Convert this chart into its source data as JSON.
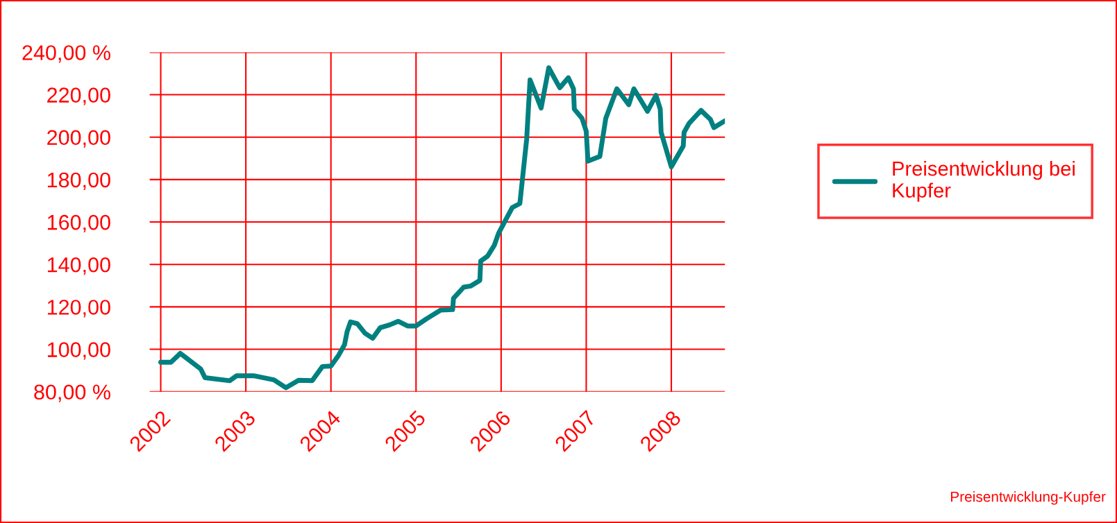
{
  "chart_data": {
    "type": "line",
    "xlim": [
      2001.87,
      2008.63
    ],
    "ylim": [
      80,
      240
    ],
    "xticks": [
      2002,
      2003,
      2004,
      2005,
      2006,
      2007,
      2008
    ],
    "yticks": [
      {
        "value": 80,
        "label": "80,00 %"
      },
      {
        "value": 100,
        "label": "100,00"
      },
      {
        "value": 120,
        "label": "120,00"
      },
      {
        "value": 140,
        "label": "140,00"
      },
      {
        "value": 160,
        "label": "160,00"
      },
      {
        "value": 180,
        "label": "180,00"
      },
      {
        "value": 200,
        "label": "200,00"
      },
      {
        "value": 220,
        "label": "220,00"
      },
      {
        "value": 240,
        "label": "240,00 %"
      }
    ],
    "grid": true,
    "legend": "right",
    "marker": "none",
    "line_style": "solid",
    "annotations": [
      "Preisentwicklung-Kupfer"
    ],
    "series": [
      {
        "name": "Preisentwicklung bei Kupfer",
        "color": "#008080",
        "x": [
          2002.0,
          2002.12,
          2002.23,
          2002.47,
          2002.52,
          2002.81,
          2002.89,
          2003.1,
          2003.33,
          2003.47,
          2003.62,
          2003.78,
          2003.9,
          2004.0,
          2004.09,
          2004.16,
          2004.19,
          2004.23,
          2004.31,
          2004.4,
          2004.49,
          2004.58,
          2004.69,
          2004.79,
          2004.9,
          2005.0,
          2005.12,
          2005.29,
          2005.43,
          2005.44,
          2005.56,
          2005.64,
          2005.75,
          2005.76,
          2005.84,
          2005.92,
          2005.97,
          2006.13,
          2006.22,
          2006.3,
          2006.34,
          2006.47,
          2006.56,
          2006.66,
          2006.69,
          2006.79,
          2006.85,
          2006.86,
          2006.95,
          2007.0,
          2007.02,
          2007.16,
          2007.23,
          2007.36,
          2007.5,
          2007.56,
          2007.72,
          2007.82,
          2007.87,
          2007.88,
          2008.0,
          2008.14,
          2008.15,
          2008.21,
          2008.35,
          2008.46,
          2008.5,
          2008.63
        ],
        "values": [
          93.9,
          93.9,
          98.1,
          90.7,
          86.6,
          85.2,
          87.5,
          87.5,
          85.6,
          81.9,
          85.4,
          85.2,
          91.9,
          92.1,
          97.2,
          102.2,
          108.3,
          112.9,
          112.1,
          107.6,
          105.2,
          110.2,
          111.5,
          113.2,
          111.0,
          111.0,
          114.3,
          118.5,
          118.7,
          124.0,
          129.3,
          129.8,
          132.5,
          141.6,
          143.9,
          149.0,
          154.7,
          166.8,
          168.7,
          199.0,
          227.0,
          213.7,
          232.7,
          225.4,
          223.3,
          228.0,
          222.8,
          213.2,
          208.9,
          202.8,
          188.7,
          190.9,
          208.9,
          222.8,
          215.3,
          222.8,
          212.2,
          219.7,
          213.2,
          202.3,
          186.0,
          195.8,
          202.3,
          206.6,
          212.6,
          208.3,
          204.5,
          207.7
        ]
      }
    ]
  }
}
